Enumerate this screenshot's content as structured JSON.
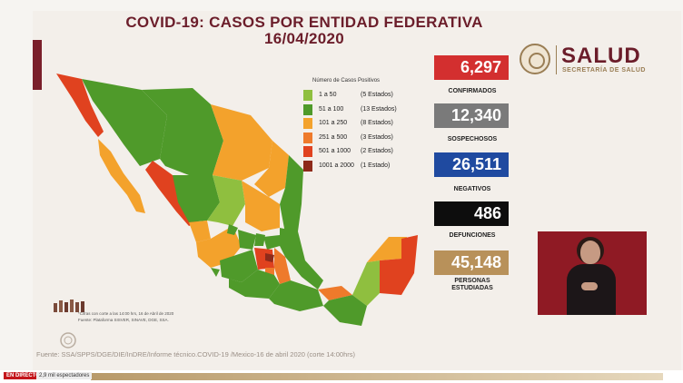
{
  "title": {
    "line1": "COVID-19: CASOS POR ENTIDAD FEDERATIVA",
    "line2": "16/04/2020"
  },
  "logo": {
    "name": "SALUD",
    "subtitle": "SECRETARÍA DE SALUD"
  },
  "legend": {
    "title": "Número de Casos Positivos",
    "items": [
      {
        "range": "1 a 50",
        "count": "(5 Estados)",
        "color": "#8fbf3f"
      },
      {
        "range": "51 a 100",
        "count": "(13 Estados)",
        "color": "#4f9a2a"
      },
      {
        "range": "101 a 250",
        "count": "(8 Estados)",
        "color": "#f3a22c"
      },
      {
        "range": "251 a 500",
        "count": "(3 Estados)",
        "color": "#ee7a2b"
      },
      {
        "range": "501 a 1000",
        "count": "(2 Estados)",
        "color": "#e0421f"
      },
      {
        "range": "1001 a 2000",
        "count": "(1 Estado)",
        "color": "#8e2a1a"
      }
    ]
  },
  "stats": [
    {
      "value": "6,297",
      "label": "CONFIRMADOS",
      "color": "#d32f2f"
    },
    {
      "value": "12,340",
      "label": "SOSPECHOSOS",
      "color": "#7a7a7a"
    },
    {
      "value": "26,511",
      "label": "NEGATIVOS",
      "color": "#1f4aa0"
    },
    {
      "value": "486",
      "label": "DEFUNCIONES",
      "color": "#0d0d0d"
    },
    {
      "value": "45,148",
      "label": "PERSONAS ESTUDIADAS",
      "label_line1": "PERSONAS",
      "label_line2": "ESTUDIADAS",
      "color": "#b8915a"
    }
  ],
  "note": {
    "line1": "*Cifras con corte a las 14:00 hrs, 16 de Abril de 2020",
    "line2": "Fuente: Plataforma SISVER, SINAVE, DGE, SSA."
  },
  "source": "Fuente: SSA/SPPS/DGE/DIE/InDRE/Informe técnico.COVID-19 /Mexico-16 de abril 2020 (corte 14:00hrs)",
  "live": {
    "badge": "EN DIRECTO",
    "viewers": "2,9 mil espectadores"
  }
}
